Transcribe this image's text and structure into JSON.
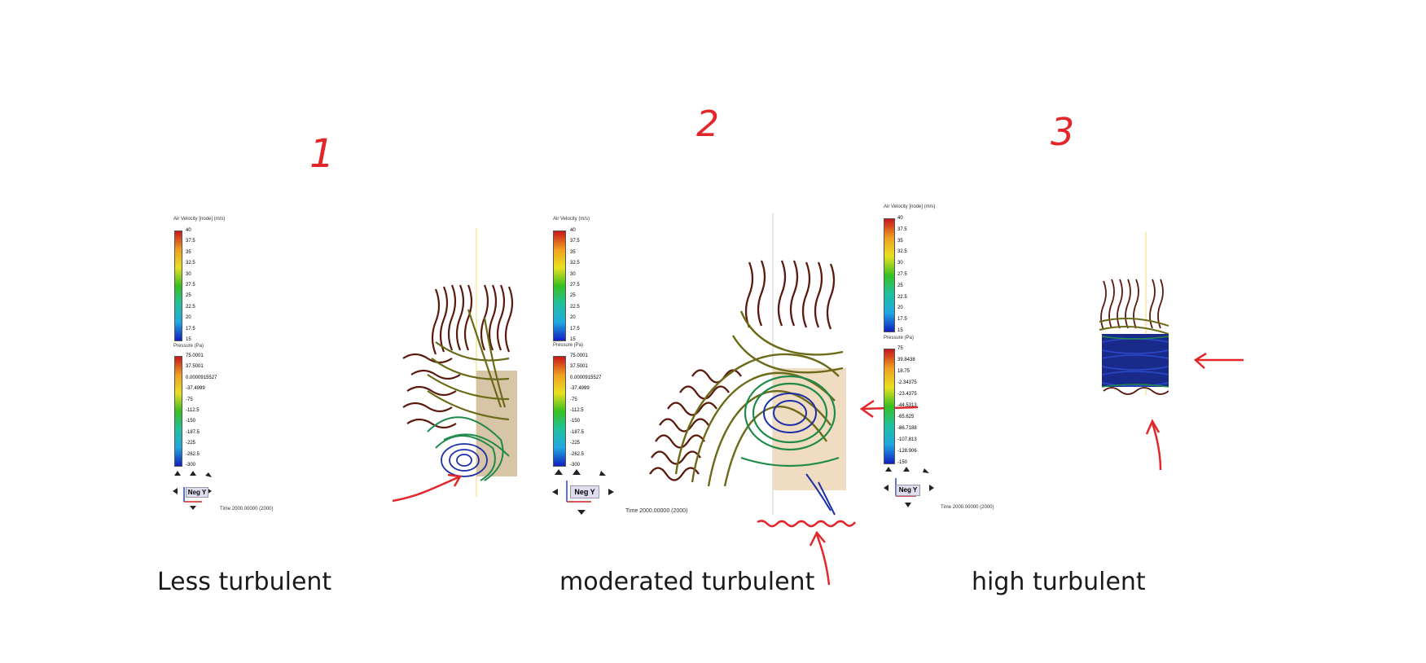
{
  "panels": [
    {
      "number_label": "1",
      "caption": "Less turbulent",
      "legend_velocity_title": "Air Velocity [node] (m/s)",
      "velocity_ticks": [
        "40",
        "37.5",
        "35",
        "32.5",
        "30",
        "27.5",
        "25",
        "22.5",
        "20",
        "17.5",
        "15"
      ],
      "legend_pressure_title": "Pressure (Pa)",
      "pressure_ticks": [
        "75.0001",
        "37.5001",
        "0.0000915527",
        "-37.4999",
        "-75",
        "-112.5",
        "-150",
        "-187.5",
        "-225",
        "-262.5",
        "-300"
      ],
      "view_label": "Neg Y",
      "time_text": "Time 2000.00000 (2000)"
    },
    {
      "number_label": "2",
      "caption": "moderated turbulent",
      "legend_velocity_title": "Air Velocity (m/s)",
      "velocity_ticks": [
        "40",
        "37.5",
        "35",
        "32.5",
        "30",
        "27.5",
        "25",
        "22.5",
        "20",
        "17.5",
        "15"
      ],
      "legend_pressure_title": "Pressure (Pa)",
      "pressure_ticks": [
        "75.0001",
        "37.5001",
        "0.0000915527",
        "-37.4999",
        "-75",
        "-112.5",
        "-150",
        "-187.5",
        "-225",
        "-262.5",
        "-300"
      ],
      "view_label": "Neg Y",
      "time_text": "Time 2000.00000 (2000)"
    },
    {
      "number_label": "3",
      "caption": "high turbulent",
      "legend_velocity_title": "Air Velocity [node] (m/s)",
      "velocity_ticks": [
        "40",
        "37.5",
        "35",
        "32.5",
        "30",
        "27.5",
        "25",
        "22.5",
        "20",
        "17.5",
        "15"
      ],
      "legend_pressure_title": "Pressure (Pa)",
      "pressure_ticks": [
        "75",
        "39.8438",
        "18.75",
        "-2.34375",
        "-23.4375",
        "-44.5313",
        "-65.625",
        "-86.7188",
        "-107.813",
        "-128.906",
        "-150"
      ],
      "view_label": "Neg Y",
      "time_text": "Time 2000.00000 (2000)"
    }
  ],
  "colors": {
    "annotation": "#e3262a",
    "scale": [
      "#c8161c",
      "#e8581c",
      "#f0a020",
      "#e8e020",
      "#a8d820",
      "#38c020",
      "#20c0a0",
      "#20a8e0",
      "#1860e0",
      "#1020c0"
    ],
    "stream_dark": "#5a1a0e",
    "stream_olive": "#6b6a18",
    "stream_green": "#1f8a4a",
    "stream_blue": "#1c2fa8"
  }
}
